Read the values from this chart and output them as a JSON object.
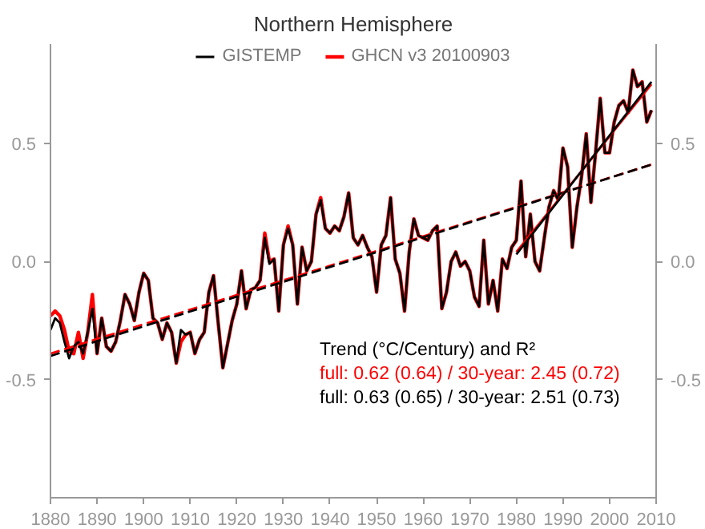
{
  "chart_data": {
    "type": "line",
    "title": "Northern Hemisphere",
    "x": [
      1880,
      1881,
      1882,
      1883,
      1884,
      1885,
      1886,
      1887,
      1888,
      1889,
      1890,
      1891,
      1892,
      1893,
      1894,
      1895,
      1896,
      1897,
      1898,
      1899,
      1900,
      1901,
      1902,
      1903,
      1904,
      1905,
      1906,
      1907,
      1908,
      1909,
      1910,
      1911,
      1912,
      1913,
      1914,
      1915,
      1916,
      1917,
      1918,
      1919,
      1920,
      1921,
      1922,
      1923,
      1924,
      1925,
      1926,
      1927,
      1928,
      1929,
      1930,
      1931,
      1932,
      1933,
      1934,
      1935,
      1936,
      1937,
      1938,
      1939,
      1940,
      1941,
      1942,
      1943,
      1944,
      1945,
      1946,
      1947,
      1948,
      1949,
      1950,
      1951,
      1952,
      1953,
      1954,
      1955,
      1956,
      1957,
      1958,
      1959,
      1960,
      1961,
      1962,
      1963,
      1964,
      1965,
      1966,
      1967,
      1968,
      1969,
      1970,
      1971,
      1972,
      1973,
      1974,
      1975,
      1976,
      1977,
      1978,
      1979,
      1980,
      1981,
      1982,
      1983,
      1984,
      1985,
      1986,
      1987,
      1988,
      1989,
      1990,
      1991,
      1992,
      1993,
      1994,
      1995,
      1996,
      1997,
      1998,
      1999,
      2000,
      2001,
      2002,
      2003,
      2004,
      2005,
      2006,
      2007,
      2008,
      2009
    ],
    "series": [
      {
        "name": "GISTEMP",
        "color": "#000000",
        "values": [
          -0.29,
          -0.24,
          -0.26,
          -0.34,
          -0.41,
          -0.36,
          -0.34,
          -0.39,
          -0.3,
          -0.2,
          -0.39,
          -0.24,
          -0.36,
          -0.38,
          -0.34,
          -0.25,
          -0.14,
          -0.18,
          -0.25,
          -0.13,
          -0.05,
          -0.08,
          -0.24,
          -0.26,
          -0.33,
          -0.26,
          -0.3,
          -0.43,
          -0.29,
          -0.31,
          -0.3,
          -0.39,
          -0.33,
          -0.3,
          -0.13,
          -0.06,
          -0.26,
          -0.45,
          -0.35,
          -0.25,
          -0.18,
          -0.04,
          -0.2,
          -0.12,
          -0.11,
          -0.08,
          0.1,
          -0.01,
          0.01,
          -0.21,
          0.07,
          0.14,
          0.07,
          -0.18,
          0.06,
          -0.04,
          0.0,
          0.2,
          0.26,
          0.14,
          0.12,
          0.15,
          0.13,
          0.19,
          0.29,
          0.1,
          0.07,
          0.11,
          0.06,
          0.02,
          -0.13,
          0.07,
          0.11,
          0.27,
          0.01,
          -0.05,
          -0.21,
          0.04,
          0.18,
          0.11,
          0.1,
          0.09,
          0.13,
          0.15,
          -0.2,
          -0.13,
          0.0,
          0.04,
          -0.02,
          0.0,
          -0.04,
          -0.15,
          -0.19,
          0.09,
          -0.18,
          -0.08,
          -0.21,
          0.01,
          -0.03,
          0.06,
          0.09,
          0.34,
          0.02,
          0.2,
          0.0,
          -0.04,
          0.1,
          0.23,
          0.3,
          0.26,
          0.48,
          0.4,
          0.06,
          0.23,
          0.36,
          0.54,
          0.25,
          0.46,
          0.69,
          0.46,
          0.46,
          0.59,
          0.66,
          0.68,
          0.63,
          0.81,
          0.74,
          0.76,
          0.59,
          0.64
        ]
      },
      {
        "name": "GHCN v3 20100903",
        "color": "#ff0000",
        "values": [
          -0.23,
          -0.21,
          -0.23,
          -0.29,
          -0.38,
          -0.39,
          -0.3,
          -0.41,
          -0.3,
          -0.14,
          -0.39,
          -0.24,
          -0.36,
          -0.38,
          -0.34,
          -0.25,
          -0.14,
          -0.18,
          -0.25,
          -0.13,
          -0.05,
          -0.08,
          -0.24,
          -0.26,
          -0.33,
          -0.26,
          -0.3,
          -0.43,
          -0.34,
          -0.31,
          -0.3,
          -0.39,
          -0.33,
          -0.3,
          -0.13,
          -0.06,
          -0.26,
          -0.45,
          -0.35,
          -0.25,
          -0.18,
          -0.04,
          -0.2,
          -0.12,
          -0.11,
          -0.08,
          0.12,
          0.0,
          0.01,
          -0.21,
          0.07,
          0.15,
          0.07,
          -0.18,
          0.06,
          -0.04,
          0.0,
          0.2,
          0.27,
          0.14,
          0.12,
          0.15,
          0.13,
          0.19,
          0.29,
          0.1,
          0.07,
          0.11,
          0.06,
          0.02,
          -0.13,
          0.07,
          0.11,
          0.27,
          0.01,
          -0.05,
          -0.21,
          0.04,
          0.18,
          0.11,
          0.1,
          0.09,
          0.13,
          0.15,
          -0.2,
          -0.13,
          0.0,
          0.04,
          -0.02,
          0.0,
          -0.04,
          -0.15,
          -0.19,
          0.09,
          -0.18,
          -0.08,
          -0.21,
          0.01,
          -0.03,
          0.06,
          0.09,
          0.34,
          0.02,
          0.2,
          0.0,
          -0.04,
          0.1,
          0.23,
          0.3,
          0.26,
          0.48,
          0.4,
          0.06,
          0.23,
          0.36,
          0.54,
          0.25,
          0.46,
          0.69,
          0.46,
          0.46,
          0.59,
          0.66,
          0.68,
          0.63,
          0.81,
          0.74,
          0.76,
          0.59,
          0.64
        ]
      },
      {
        "color": "#ff0000",
        "line_style": "dashed",
        "x": [
          1880,
          2009
        ],
        "values": [
          -0.39,
          0.41
        ]
      },
      {
        "color": "#000000",
        "line_style": "dashed",
        "x": [
          1880,
          2009
        ],
        "values": [
          -0.4,
          0.41
        ]
      },
      {
        "color": "#ff0000",
        "x": [
          1980,
          2009
        ],
        "values": [
          0.04,
          0.75
        ]
      },
      {
        "color": "#000000",
        "x": [
          1980,
          2009
        ],
        "values": [
          0.03,
          0.76
        ]
      }
    ],
    "xlim": [
      1880,
      2010
    ],
    "xticks": [
      1880,
      1890,
      1900,
      1910,
      1920,
      1930,
      1940,
      1950,
      1960,
      1970,
      1980,
      1990,
      2000,
      2010
    ],
    "ylim": [
      -1.0,
      0.92
    ],
    "yticks": [
      {
        "value": -0.5,
        "label": "-0.5"
      },
      {
        "value": 0,
        "label": "0.0"
      },
      {
        "value": 0.5,
        "label": "0.5"
      }
    ],
    "y2lim": [
      -1.0,
      0.92
    ],
    "y2ticks": [
      {
        "value": -0.5,
        "label": "-0.5"
      },
      {
        "value": 0,
        "label": "0.0"
      },
      {
        "value": 0.5,
        "label": "0.5"
      }
    ],
    "annotations": [
      "Trend (°C/Century) and R²",
      "full: 0.62 (0.64) / 30-year: 2.45 (0.72)",
      "full: 0.63 (0.65) / 30-year: 2.51 (0.73)"
    ],
    "legend": "top",
    "grid": false,
    "marker": "none"
  }
}
